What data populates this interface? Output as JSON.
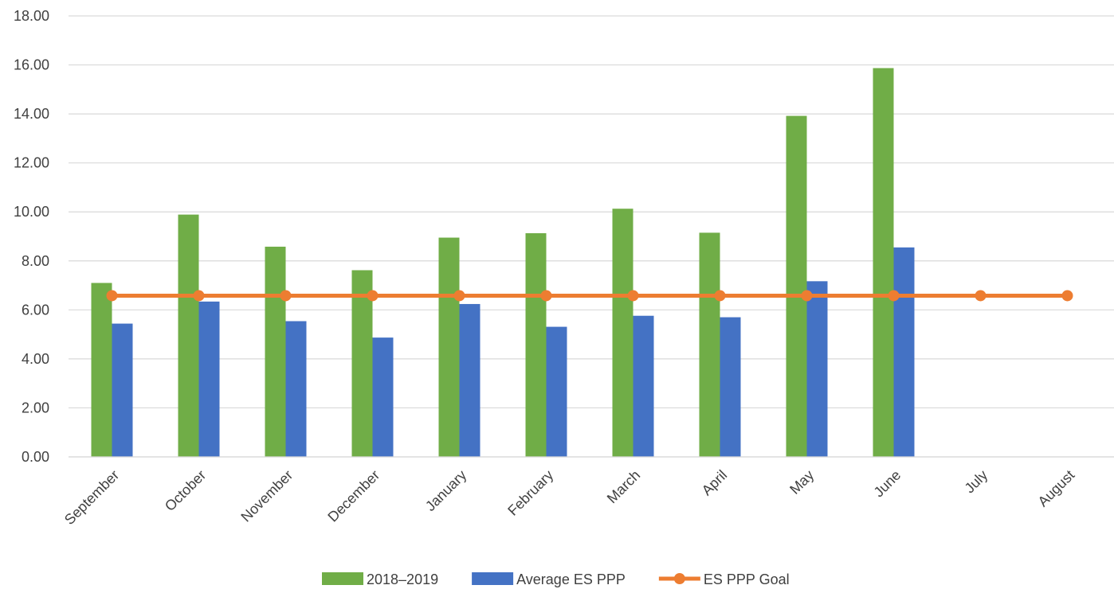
{
  "chart_data": {
    "type": "bar",
    "categories": [
      "September",
      "October",
      "November",
      "December",
      "January",
      "February",
      "March",
      "April",
      "May",
      "June",
      "July",
      "August"
    ],
    "series": [
      {
        "name": "2018–2019",
        "kind": "bar",
        "color": "#70AD47",
        "values": [
          7.1,
          9.89,
          8.58,
          7.62,
          8.95,
          9.13,
          10.13,
          9.15,
          13.92,
          15.87,
          null,
          null
        ]
      },
      {
        "name": "Average ES PPP",
        "kind": "bar",
        "color": "#4472C4",
        "values": [
          5.44,
          6.34,
          5.54,
          4.87,
          6.24,
          5.31,
          5.76,
          5.7,
          7.17,
          8.55,
          null,
          null
        ]
      },
      {
        "name": "ES PPP Goal",
        "kind": "line",
        "color": "#ED7D31",
        "values": [
          6.58,
          6.58,
          6.58,
          6.58,
          6.58,
          6.58,
          6.58,
          6.58,
          6.58,
          6.58,
          6.58,
          6.58
        ]
      }
    ],
    "y_ticks": [
      "0.00",
      "2.00",
      "4.00",
      "6.00",
      "8.00",
      "10.00",
      "12.00",
      "14.00",
      "16.00",
      "18.00"
    ],
    "ylim": [
      0,
      18
    ],
    "grid": true,
    "legend_position": "bottom",
    "title": "",
    "xlabel": "",
    "ylabel": ""
  }
}
